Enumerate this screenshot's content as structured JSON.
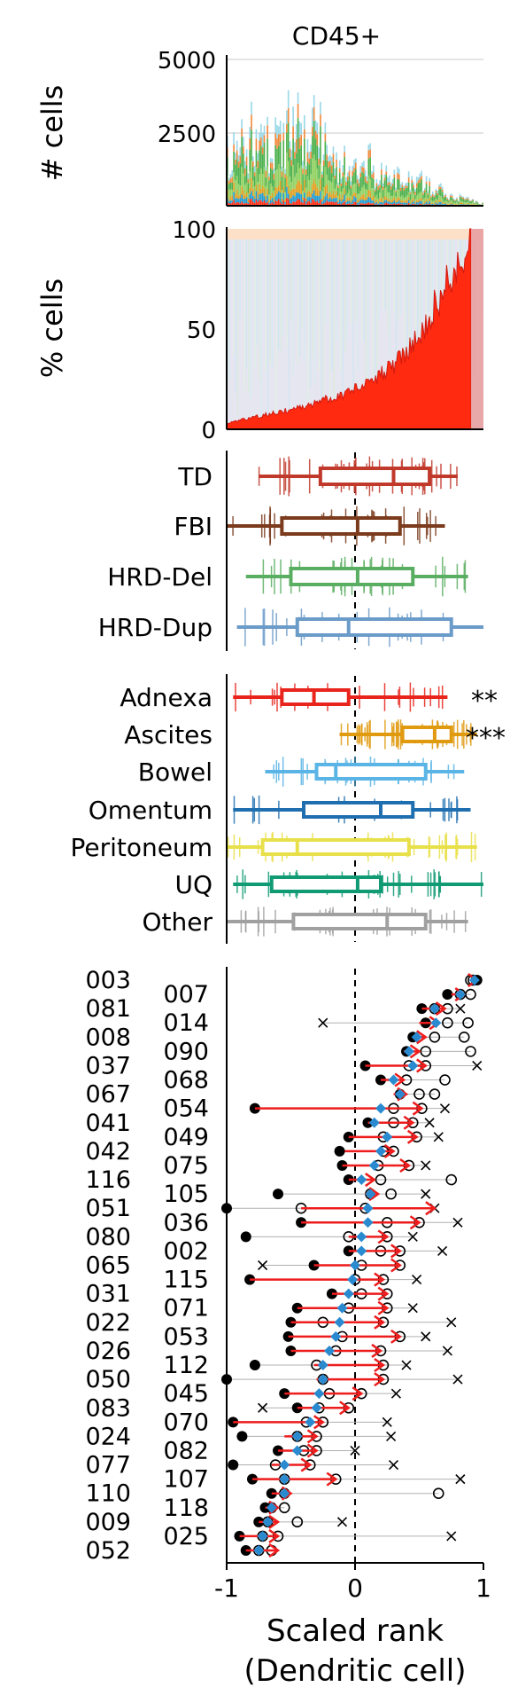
{
  "title": "CD45+",
  "xlabel_line1": "Scaled rank",
  "xlabel_line2": "(Dendritic cell)",
  "x_ticks": [
    "-1",
    "0",
    "1"
  ],
  "chart_data": [
    {
      "type": "bar",
      "panel": "counts",
      "ylabel": "# cells",
      "ylim": [
        0,
        5000
      ],
      "y_ticks": [
        2500,
        5000
      ],
      "n_samples": 160,
      "stacked": true,
      "grid": true,
      "approx_total_profile": [
        2600,
        2900,
        3300,
        2800,
        3500,
        3100,
        3200,
        2400,
        2000,
        1800,
        1500,
        1300,
        1100,
        900,
        600,
        300,
        100
      ]
    },
    {
      "type": "area",
      "panel": "percent",
      "ylabel": "% cells",
      "ylim": [
        0,
        100
      ],
      "y_ticks": [
        0,
        50,
        100
      ],
      "series_highlight": "Dendritic cell",
      "highlight_profile_percent": [
        3,
        5,
        7,
        9,
        11,
        14,
        17,
        21,
        26,
        33,
        44,
        60,
        78,
        100
      ]
    },
    {
      "type": "boxplot",
      "panel": "signature",
      "xlim": [
        -1,
        1
      ],
      "categories": [
        "TD",
        "FBI",
        "HRD-Del",
        "HRD-Dup"
      ],
      "colors": [
        "#c0392b",
        "#7b3b1c",
        "#5aae61",
        "#6b9bc8"
      ],
      "boxes": [
        {
          "name": "TD",
          "whisker_low": -0.75,
          "q1": -0.27,
          "median": 0.3,
          "q3": 0.58,
          "whisker_high": 0.8
        },
        {
          "name": "FBI",
          "whisker_low": -1.0,
          "q1": -0.57,
          "median": 0.02,
          "q3": 0.35,
          "whisker_high": 0.7
        },
        {
          "name": "HRD-Del",
          "whisker_low": -0.85,
          "q1": -0.5,
          "median": 0.02,
          "q3": 0.45,
          "whisker_high": 0.88
        },
        {
          "name": "HRD-Dup",
          "whisker_low": -0.92,
          "q1": -0.45,
          "median": -0.05,
          "q3": 0.75,
          "whisker_high": 1.0
        }
      ]
    },
    {
      "type": "boxplot",
      "panel": "site",
      "xlim": [
        -1,
        1
      ],
      "categories": [
        "Adnexa",
        "Ascites",
        "Bowel",
        "Omentum",
        "Peritoneum",
        "UQ",
        "Other"
      ],
      "colors": [
        "#e8241c",
        "#e09a10",
        "#5ab4e5",
        "#1f6fb0",
        "#e8e04a",
        "#119b74",
        "#a0a0a0"
      ],
      "significance": [
        "**",
        "***",
        "",
        "",
        "",
        "",
        ""
      ],
      "boxes": [
        {
          "name": "Adnexa",
          "whisker_low": -0.95,
          "q1": -0.57,
          "median": -0.32,
          "q3": -0.05,
          "whisker_high": 0.72
        },
        {
          "name": "Ascites",
          "whisker_low": -0.12,
          "q1": 0.37,
          "median": 0.62,
          "q3": 0.75,
          "whisker_high": 0.95
        },
        {
          "name": "Bowel",
          "whisker_low": -0.7,
          "q1": -0.3,
          "median": -0.15,
          "q3": 0.55,
          "whisker_high": 0.85
        },
        {
          "name": "Omentum",
          "whisker_low": -0.95,
          "q1": -0.4,
          "median": 0.2,
          "q3": 0.45,
          "whisker_high": 0.9
        },
        {
          "name": "Peritoneum",
          "whisker_low": -1.0,
          "q1": -0.72,
          "median": -0.45,
          "q3": 0.42,
          "whisker_high": 0.95
        },
        {
          "name": "UQ",
          "whisker_low": -0.95,
          "q1": -0.65,
          "median": 0.02,
          "q3": 0.2,
          "whisker_high": 1.0
        },
        {
          "name": "Other",
          "whisker_low": -1.0,
          "q1": -0.48,
          "median": 0.25,
          "q3": 0.55,
          "whisker_high": 0.88
        }
      ]
    },
    {
      "type": "scatter",
      "panel": "patients",
      "xlim": [
        -1,
        1
      ],
      "rows": [
        {
          "id": "003",
          "median": 0.93,
          "start": 0.9,
          "end": 0.95,
          "points": [
            0.95,
            0.92,
            0.9,
            0.93
          ]
        },
        {
          "id": "007",
          "median": 0.82,
          "start": 0.75,
          "end": 0.85,
          "points": [
            0.72,
            0.82,
            0.9
          ]
        },
        {
          "id": "081",
          "median": 0.62,
          "start": 0.52,
          "end": 0.7,
          "points": [
            0.52,
            0.62,
            0.72,
            0.82
          ]
        },
        {
          "id": "014",
          "median": 0.63,
          "start": 0.5,
          "end": 0.65,
          "points": [
            0.55,
            0.72,
            0.88,
            -0.25
          ]
        },
        {
          "id": "008",
          "median": 0.48,
          "start": 0.45,
          "end": 0.55,
          "points": [
            0.45,
            0.62,
            0.85
          ]
        },
        {
          "id": "090",
          "median": 0.42,
          "start": 0.38,
          "end": 0.5,
          "points": [
            0.4,
            0.55,
            0.9
          ]
        },
        {
          "id": "037",
          "median": 0.45,
          "start": 0.08,
          "end": 0.55,
          "points": [
            0.08,
            0.42,
            0.55,
            0.95
          ]
        },
        {
          "id": "068",
          "median": 0.3,
          "start": 0.2,
          "end": 0.38,
          "points": [
            0.2,
            0.4,
            0.7
          ]
        },
        {
          "id": "067",
          "median": 0.35,
          "start": 0.3,
          "end": 0.4,
          "points": [
            0.35,
            0.5,
            0.62
          ]
        },
        {
          "id": "054",
          "median": 0.2,
          "start": -0.78,
          "end": 0.52,
          "points": [
            -0.78,
            0.3,
            0.52,
            0.7
          ]
        },
        {
          "id": "041",
          "median": 0.15,
          "start": 0.1,
          "end": 0.45,
          "points": [
            0.1,
            0.3,
            0.45,
            0.58
          ]
        },
        {
          "id": "049",
          "median": 0.25,
          "start": -0.05,
          "end": 0.48,
          "points": [
            -0.05,
            0.22,
            0.48,
            0.65
          ]
        },
        {
          "id": "042",
          "median": 0.2,
          "start": -0.08,
          "end": 0.3,
          "points": [
            -0.12,
            0.22,
            0.3
          ]
        },
        {
          "id": "075",
          "median": 0.15,
          "start": -0.1,
          "end": 0.42,
          "points": [
            -0.1,
            0.18,
            0.42,
            0.55
          ]
        },
        {
          "id": "116",
          "median": 0.05,
          "start": -0.05,
          "end": 0.15,
          "points": [
            -0.05,
            0.2,
            0.75
          ]
        },
        {
          "id": "105",
          "median": 0.12,
          "start": 0.08,
          "end": 0.18,
          "points": [
            -0.6,
            0.12,
            0.28,
            0.55
          ]
        },
        {
          "id": "051",
          "median": 0.1,
          "start": -0.42,
          "end": 0.62,
          "points": [
            -1.0,
            -0.42,
            0.08,
            0.62
          ]
        },
        {
          "id": "036",
          "median": 0.1,
          "start": -0.42,
          "end": 0.5,
          "points": [
            -0.42,
            0.25,
            0.5,
            0.8
          ]
        },
        {
          "id": "080",
          "median": 0.05,
          "start": -0.05,
          "end": 0.25,
          "points": [
            -0.85,
            -0.05,
            0.25,
            0.45
          ]
        },
        {
          "id": "002",
          "median": 0.05,
          "start": -0.05,
          "end": 0.35,
          "points": [
            -0.05,
            0.2,
            0.35,
            0.68
          ]
        },
        {
          "id": "065",
          "median": 0.0,
          "start": -0.32,
          "end": 0.35,
          "points": [
            -0.32,
            0.05,
            0.35,
            -0.72
          ]
        },
        {
          "id": "115",
          "median": -0.02,
          "start": -0.82,
          "end": 0.22,
          "points": [
            -0.82,
            0.0,
            0.22,
            0.48
          ]
        },
        {
          "id": "031",
          "median": -0.05,
          "start": -0.18,
          "end": 0.25,
          "points": [
            -0.18,
            0.05,
            0.25
          ]
        },
        {
          "id": "071",
          "median": -0.1,
          "start": -0.45,
          "end": 0.25,
          "points": [
            -0.45,
            -0.05,
            0.25,
            0.45
          ]
        },
        {
          "id": "022",
          "median": -0.12,
          "start": -0.5,
          "end": 0.22,
          "points": [
            -0.5,
            -0.25,
            0.22,
            0.75
          ]
        },
        {
          "id": "053",
          "median": -0.15,
          "start": -0.52,
          "end": 0.35,
          "points": [
            -0.52,
            -0.1,
            0.35,
            0.55
          ]
        },
        {
          "id": "026",
          "median": -0.2,
          "start": -0.5,
          "end": 0.2,
          "points": [
            -0.5,
            -0.15,
            0.2,
            0.72
          ]
        },
        {
          "id": "112",
          "median": -0.25,
          "start": -0.32,
          "end": 0.22,
          "points": [
            -0.78,
            -0.3,
            0.22,
            0.4
          ]
        },
        {
          "id": "050",
          "median": -0.25,
          "start": -0.3,
          "end": 0.22,
          "points": [
            -1.0,
            -0.25,
            0.22,
            0.8
          ]
        },
        {
          "id": "045",
          "median": -0.28,
          "start": -0.55,
          "end": 0.05,
          "points": [
            -0.55,
            -0.2,
            0.05,
            0.32
          ]
        },
        {
          "id": "083",
          "median": -0.3,
          "start": -0.45,
          "end": -0.05,
          "points": [
            -0.45,
            -0.28,
            -0.05,
            -0.72
          ]
        },
        {
          "id": "070",
          "median": -0.35,
          "start": -0.95,
          "end": -0.25,
          "points": [
            -0.95,
            -0.38,
            -0.25,
            0.25
          ]
        },
        {
          "id": "024",
          "median": -0.45,
          "start": -0.55,
          "end": -0.3,
          "points": [
            -0.88,
            -0.45,
            -0.3,
            0.28
          ]
        },
        {
          "id": "082",
          "median": -0.45,
          "start": -0.6,
          "end": -0.3,
          "points": [
            -0.6,
            -0.4,
            -0.3,
            0.0
          ]
        },
        {
          "id": "077",
          "median": -0.55,
          "start": -0.65,
          "end": -0.35,
          "points": [
            -0.95,
            -0.62,
            -0.35,
            0.3
          ]
        },
        {
          "id": "107",
          "median": -0.55,
          "start": -0.8,
          "end": -0.15,
          "points": [
            -0.8,
            -0.55,
            -0.15,
            0.82
          ]
        },
        {
          "id": "110",
          "median": -0.55,
          "start": -0.65,
          "end": -0.5,
          "points": [
            -0.65,
            -0.55,
            0.65
          ]
        },
        {
          "id": "118",
          "median": -0.65,
          "start": -0.7,
          "end": -0.6,
          "points": [
            -0.7,
            -0.65,
            -0.55
          ]
        },
        {
          "id": "009",
          "median": -0.68,
          "start": -0.75,
          "end": -0.6,
          "points": [
            -0.75,
            -0.68,
            -0.45,
            -0.1
          ]
        },
        {
          "id": "025",
          "median": -0.72,
          "start": -0.9,
          "end": -0.6,
          "points": [
            -0.9,
            -0.72,
            -0.6,
            0.75
          ]
        },
        {
          "id": "052",
          "median": -0.75,
          "start": -0.85,
          "end": -0.6,
          "points": [
            -0.85,
            -0.75,
            -0.65
          ]
        }
      ]
    }
  ]
}
